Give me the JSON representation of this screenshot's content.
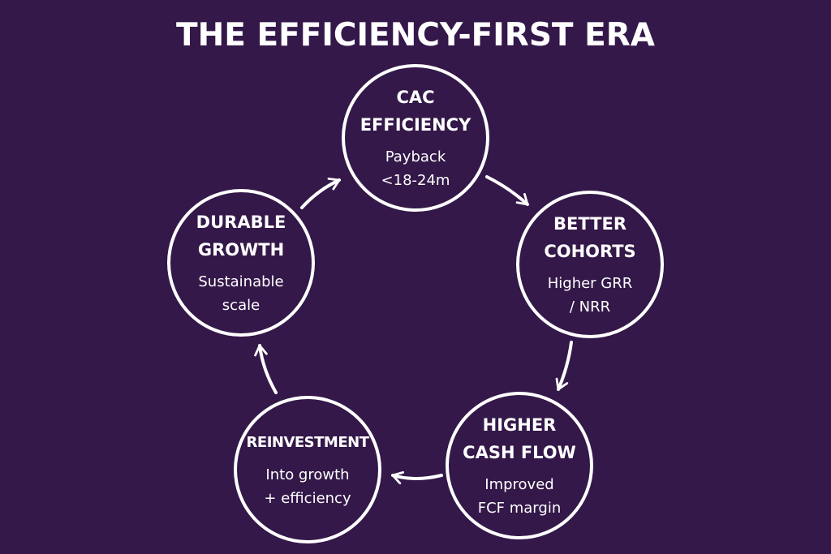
{
  "title": "THE EFFICIENCY-FIRST ERA",
  "nodes": [
    {
      "id": "cac",
      "title_lines": [
        "CAC",
        "EFFICIENCY"
      ],
      "sub_lines": [
        "Payback",
        "<18-24m"
      ]
    },
    {
      "id": "cohorts",
      "title_lines": [
        "BETTER",
        "COHORTS"
      ],
      "sub_lines": [
        "Higher GRR",
        "/ NRR"
      ]
    },
    {
      "id": "cashflow",
      "title_lines": [
        "HIGHER",
        "CASH FLOW"
      ],
      "sub_lines": [
        "Improved",
        "FCF margin"
      ]
    },
    {
      "id": "reinvest",
      "title_lines": [
        "REINVESTMENT"
      ],
      "sub_lines": [
        "Into growth",
        "+ efficiency"
      ]
    },
    {
      "id": "durable",
      "title_lines": [
        "DURABLE",
        "GROWTH"
      ],
      "sub_lines": [
        "Sustainable",
        "scale"
      ]
    }
  ],
  "colors": {
    "background": "#341849",
    "foreground": "#ffffff"
  }
}
